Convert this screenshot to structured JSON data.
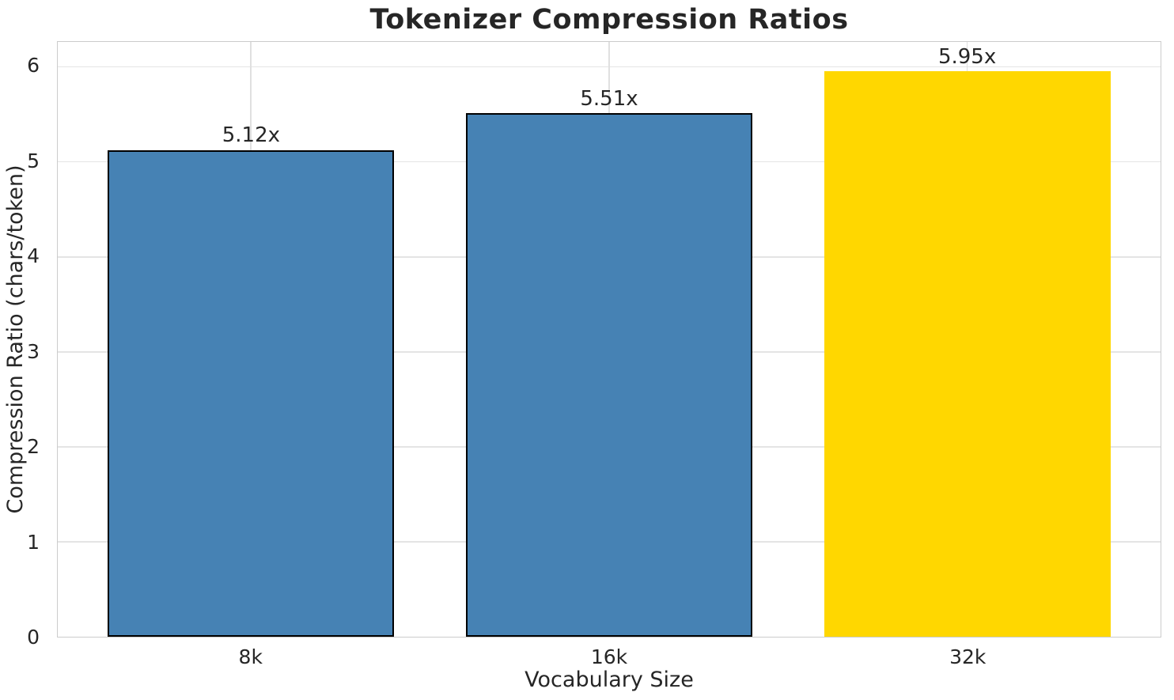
{
  "chart_data": {
    "type": "bar",
    "title": "Tokenizer Compression Ratios",
    "xlabel": "Vocabulary Size",
    "ylabel": "Compression Ratio (chars/token)",
    "categories": [
      "8k",
      "16k",
      "32k"
    ],
    "values": [
      5.12,
      5.51,
      5.95
    ],
    "value_labels": [
      "5.12x",
      "5.51x",
      "5.95x"
    ],
    "bar_colors": [
      "#4682b4",
      "#4682b4",
      "#ffd700"
    ],
    "bar_edge_colors": [
      "#000000",
      "#000000",
      "#ffd700"
    ],
    "yticks": [
      0,
      1,
      2,
      3,
      4,
      5,
      6
    ],
    "ylim": [
      0,
      6.26
    ],
    "xlim": [
      -0.54,
      2.54
    ],
    "bar_width": 0.8,
    "grid": "both",
    "legend": "none",
    "colors": {
      "grid": "#e4e4e4",
      "spine": "#cccccc",
      "text": "#262626",
      "background": "#ffffff"
    }
  }
}
